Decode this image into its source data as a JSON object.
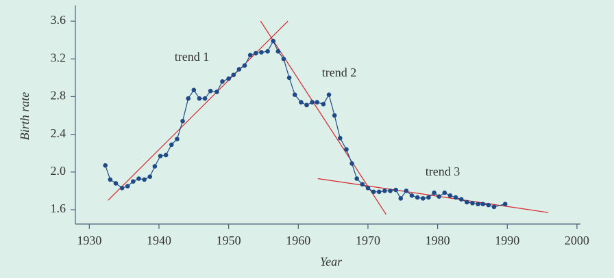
{
  "chart_data": {
    "type": "line",
    "xlabel": "Year",
    "ylabel": "Birth rate",
    "xlim": [
      1928,
      2000.5
    ],
    "ylim": [
      1.448,
      3.767
    ],
    "xticks": [
      1930,
      1940,
      1950,
      1960,
      1970,
      1980,
      1990,
      2000
    ],
    "yticks": [
      1.6,
      {
        "value": 2,
        "label": "2.0"
      },
      2.4,
      2.8,
      3.2,
      3.6
    ],
    "series": [
      {
        "color": "#1f4a86",
        "x": [
          1932.3,
          1933.0,
          1933.8,
          1934.7,
          1935.5,
          1936.3,
          1937.1,
          1937.9,
          1938.7,
          1939.4,
          1940.2,
          1941.0,
          1941.8,
          1942.6,
          1943.4,
          1944.2,
          1945.0,
          1945.8,
          1946.6,
          1947.4,
          1948.3,
          1949.1,
          1950.0,
          1950.7,
          1951.5,
          1952.3,
          1953.1,
          1953.9,
          1954.7,
          1955.6,
          1956.4,
          1957.1,
          1957.9,
          1958.7,
          1959.5,
          1960.4,
          1961.2,
          1962.0,
          1962.7,
          1963.6,
          1964.4,
          1965.2,
          1966.0,
          1966.9,
          1967.7,
          1968.4,
          1969.2,
          1970.0,
          1970.8,
          1971.6,
          1972.4,
          1973.2,
          1974.0,
          1974.7,
          1975.5,
          1976.3,
          1977.1,
          1977.9,
          1978.7,
          1979.5,
          1980.2,
          1981.0,
          1981.8,
          1982.6,
          1983.4,
          1984.2,
          1985.0,
          1985.8,
          1986.5,
          1987.3,
          1988.1,
          1989.7
        ],
        "values": [
          2.07,
          1.92,
          1.88,
          1.83,
          1.85,
          1.9,
          1.93,
          1.92,
          1.95,
          2.06,
          2.17,
          2.18,
          2.29,
          2.35,
          2.54,
          2.78,
          2.87,
          2.78,
          2.78,
          2.86,
          2.85,
          2.96,
          2.99,
          3.03,
          3.09,
          3.13,
          3.24,
          3.26,
          3.27,
          3.28,
          3.39,
          3.28,
          3.2,
          3.0,
          2.82,
          2.74,
          2.71,
          2.74,
          2.74,
          2.72,
          2.82,
          2.6,
          2.36,
          2.24,
          2.09,
          1.93,
          1.87,
          1.83,
          1.79,
          1.79,
          1.8,
          1.8,
          1.81,
          1.72,
          1.8,
          1.75,
          1.73,
          1.72,
          1.73,
          1.78,
          1.74,
          1.78,
          1.75,
          1.73,
          1.71,
          1.68,
          1.67,
          1.66,
          1.66,
          1.65,
          1.63,
          1.66
        ]
      }
    ],
    "trend_lines": [
      {
        "label": "trend 1",
        "color": "#d8232a",
        "x": [
          1932.7,
          1958.5
        ],
        "values": [
          1.7,
          3.6
        ]
      },
      {
        "label": "trend 2",
        "color": "#d8232a",
        "x": [
          1954.6,
          1972.6
        ],
        "values": [
          3.6,
          1.55
        ]
      },
      {
        "label": "trend 3",
        "color": "#d8232a",
        "x": [
          1962.8,
          1995.9
        ],
        "values": [
          1.93,
          1.57
        ]
      }
    ]
  }
}
